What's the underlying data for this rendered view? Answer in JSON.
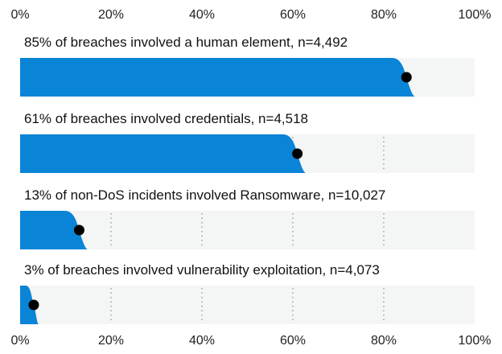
{
  "chart_data": {
    "type": "bar",
    "orientation": "horizontal",
    "xlim": [
      0,
      100
    ],
    "x_ticks": [
      "0%",
      "20%",
      "40%",
      "60%",
      "80%",
      "100%"
    ],
    "grid": "vertical dotted lines",
    "categories": [
      "85% of breaches involved a human element, n=4,492",
      "61% of breaches involved credentials, n=4,518",
      "13% of non-DoS incidents involved Ransomware, n=10,027",
      "3% of breaches involved vulnerability exploitation, n=4,073"
    ],
    "values": [
      85,
      61,
      13,
      3
    ],
    "colors": {
      "bar": "#0a84d6",
      "track": "#f4f5f5",
      "marker": "#000000",
      "grid": "#8a8a8a"
    }
  }
}
